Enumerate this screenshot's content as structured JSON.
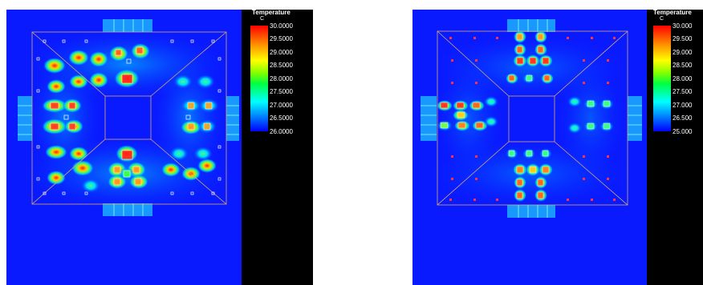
{
  "chart_data": [
    {
      "type": "heatmap",
      "title": "",
      "legend": {
        "title": "Temperature",
        "unit": "C",
        "ticks": [
          "30.0000",
          "29.5000",
          "29.0000",
          "28.5000",
          "28.0000",
          "27.5000",
          "27.0000",
          "26.5000",
          "26.0000"
        ],
        "min": 26.0,
        "max": 30.0,
        "placement": "right"
      },
      "colors": {
        "low": "#0000ff",
        "high": "#ff0000",
        "frame": "#e0b07a"
      }
    },
    {
      "type": "heatmap",
      "title": "",
      "legend": {
        "title": "Temperature",
        "unit": "C",
        "ticks": [
          "30.000",
          "29.500",
          "29.000",
          "28.500",
          "28.000",
          "27.500",
          "27.000",
          "26.500",
          "25.000"
        ],
        "min": 25.0,
        "max": 30.0,
        "placement": "right"
      },
      "colors": {
        "low": "#0000ff",
        "high": "#ff0000",
        "frame": "#e0b07a"
      }
    }
  ]
}
